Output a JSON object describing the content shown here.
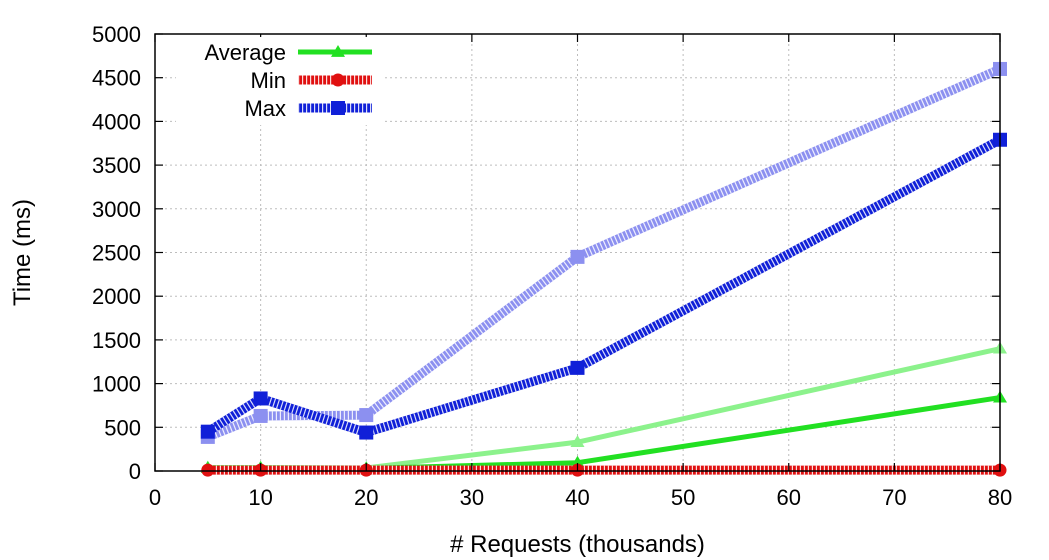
{
  "chart_data": {
    "type": "line",
    "title": "",
    "xlabel": "# Requests (thousands)",
    "ylabel": "Time (ms)",
    "xlim": [
      0,
      80
    ],
    "ylim": [
      0,
      5000
    ],
    "xticks": [
      0,
      10,
      20,
      30,
      40,
      50,
      60,
      70,
      80
    ],
    "yticks": [
      0,
      500,
      1000,
      1500,
      2000,
      2500,
      3000,
      3500,
      4000,
      4500,
      5000
    ],
    "grid": true,
    "legend_position": "top-left",
    "x": [
      5,
      10,
      20,
      40,
      80
    ],
    "legend": [
      {
        "name": "Average",
        "color": "#22e022",
        "marker": "triangle",
        "style": "solid"
      },
      {
        "name": "Min",
        "color": "#e01010",
        "marker": "circle",
        "style": "hatched"
      },
      {
        "name": "Max",
        "color": "#1020d8",
        "marker": "square",
        "style": "hatched"
      }
    ],
    "series": [
      {
        "group": "Average",
        "variant": "dark",
        "color": "#22e022",
        "values": [
          35,
          35,
          30,
          95,
          840
        ]
      },
      {
        "group": "Average",
        "variant": "light",
        "color": "#8cf28c",
        "values": [
          40,
          40,
          35,
          330,
          1400
        ]
      },
      {
        "group": "Min",
        "variant": "dark",
        "color": "#e01010",
        "values": [
          10,
          10,
          10,
          10,
          10
        ]
      },
      {
        "group": "Max",
        "variant": "dark",
        "color": "#1020d8",
        "values": [
          450,
          830,
          440,
          1180,
          3790
        ]
      },
      {
        "group": "Max",
        "variant": "light",
        "color": "#8c90f0",
        "values": [
          390,
          630,
          640,
          2450,
          4600
        ]
      }
    ]
  }
}
